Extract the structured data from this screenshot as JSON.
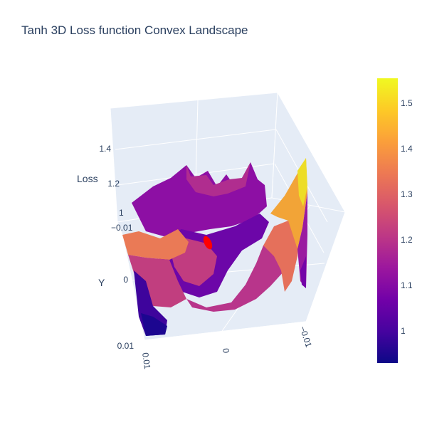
{
  "chart_data": {
    "type": "surface",
    "title": "Tanh 3D Loss function Convex Landscape",
    "zlabel": "Loss",
    "ylabel": "Y",
    "xlabel": "",
    "z_ticks": [
      "1",
      "1.2",
      "1.4"
    ],
    "y_ticks": [
      "−0.01",
      "0",
      "0.01"
    ],
    "x_ticks": [
      "0.01",
      "0",
      "−0.01"
    ],
    "colorbar": {
      "range": [
        0.93,
        1.555
      ],
      "ticks": [
        {
          "value": 1.0,
          "label": "1"
        },
        {
          "value": 1.1,
          "label": "1.1"
        },
        {
          "value": 1.2,
          "label": "1.2"
        },
        {
          "value": 1.3,
          "label": "1.3"
        },
        {
          "value": 1.4,
          "label": "1.4"
        },
        {
          "value": 1.5,
          "label": "1.5"
        }
      ]
    },
    "colorscale": [
      "#0d0887",
      "#46039f",
      "#7201a8",
      "#9c179e",
      "#bd3786",
      "#d8576b",
      "#ed7953",
      "#fb9f3a",
      "#fdca26",
      "#f0f921"
    ],
    "marker_color": "#ff0000",
    "scene_bgcolor": "#e5ecf6"
  }
}
